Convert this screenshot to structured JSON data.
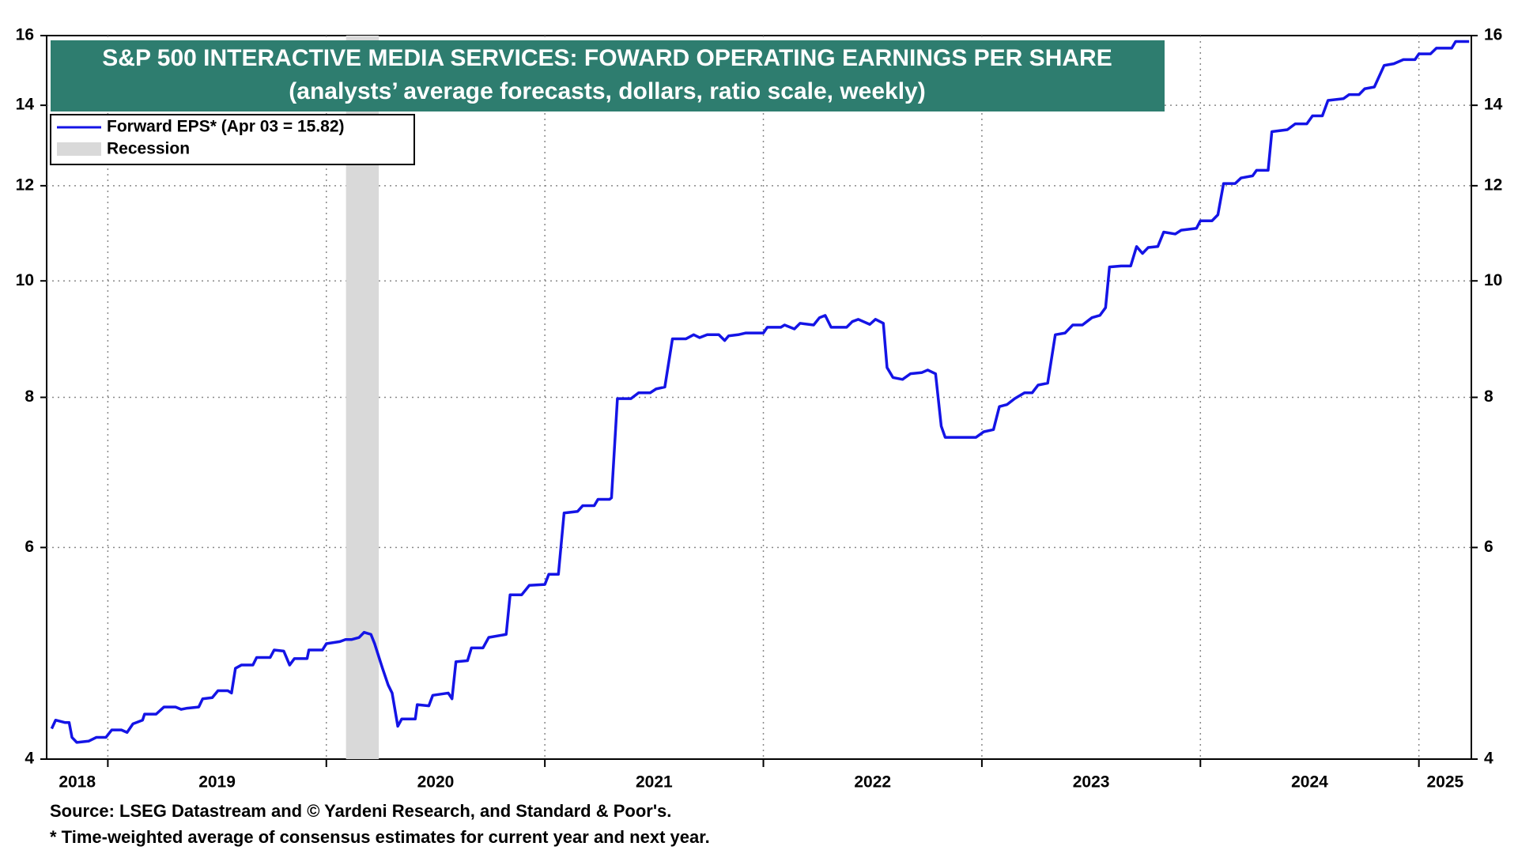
{
  "chart_data": {
    "type": "line",
    "title": "S&P 500 INTERACTIVE MEDIA SERVICES: FOWARD OPERATING EARNINGS PER SHARE",
    "subtitle": "(analysts’ average forecasts, dollars, ratio scale, weekly)",
    "source": "Source: LSEG Datastream and © Yardeni Research, and Standard & Poor's.",
    "footnote": "* Time-weighted average of consensus estimates for current year and next year.",
    "log_scale": true,
    "grid": true,
    "ylim": [
      4,
      16
    ],
    "yticks": [
      4,
      6,
      8,
      10,
      12,
      14,
      16
    ],
    "xlim": [
      2018.72,
      2025.24
    ],
    "xticks": [
      2019,
      2020,
      2021,
      2022,
      2023,
      2024,
      2025
    ],
    "year_labels": [
      "2018",
      "2019",
      "2020",
      "2021",
      "2022",
      "2023",
      "2024",
      "2025"
    ],
    "recession": [
      2020.09,
      2020.24
    ],
    "recession_name": "Recession",
    "recession_color": "#d9d9d9",
    "legend": "upper left",
    "x": [
      2018.743,
      2018.761,
      2018.805,
      2018.823,
      2018.836,
      2018.858,
      2018.912,
      2018.947,
      2018.991,
      2019.018,
      2019.062,
      2019.088,
      2019.115,
      2019.159,
      2019.168,
      2019.221,
      2019.257,
      2019.31,
      2019.336,
      2019.363,
      2019.416,
      2019.434,
      2019.478,
      2019.504,
      2019.549,
      2019.566,
      2019.584,
      2019.611,
      2019.664,
      2019.681,
      2019.743,
      2019.761,
      2019.805,
      2019.832,
      2019.854,
      2019.912,
      2019.92,
      2019.982,
      2020.0,
      2020.062,
      2020.088,
      2020.115,
      2020.15,
      2020.173,
      2020.204,
      2020.221,
      2020.257,
      2020.283,
      2020.301,
      2020.327,
      2020.345,
      2020.407,
      2020.416,
      2020.469,
      2020.487,
      2020.558,
      2020.575,
      2020.593,
      2020.646,
      2020.664,
      2020.717,
      2020.743,
      2020.823,
      2020.841,
      2020.894,
      2020.929,
      2021.0,
      2021.018,
      2021.062,
      2021.088,
      2021.15,
      2021.173,
      2021.226,
      2021.243,
      2021.296,
      2021.305,
      2021.332,
      2021.394,
      2021.429,
      2021.482,
      2021.509,
      2021.549,
      2021.584,
      2021.646,
      2021.681,
      2021.708,
      2021.743,
      2021.796,
      2021.823,
      2021.841,
      2021.885,
      2021.92,
      2022.0,
      2022.018,
      2022.08,
      2022.097,
      2022.142,
      2022.168,
      2022.23,
      2022.257,
      2022.283,
      2022.31,
      2022.381,
      2022.407,
      2022.434,
      2022.487,
      2022.513,
      2022.549,
      2022.566,
      2022.593,
      2022.637,
      2022.673,
      2022.726,
      2022.752,
      2022.788,
      2022.814,
      2022.832,
      2022.894,
      2022.973,
      2023.009,
      2023.053,
      2023.08,
      2023.115,
      2023.15,
      2023.195,
      2023.23,
      2023.257,
      2023.301,
      2023.336,
      2023.381,
      2023.416,
      2023.46,
      2023.504,
      2023.54,
      2023.566,
      2023.584,
      2023.637,
      2023.681,
      2023.708,
      2023.735,
      2023.761,
      2023.805,
      2023.832,
      2023.885,
      2023.912,
      2023.982,
      2024.0,
      2024.053,
      2024.08,
      2024.106,
      2024.159,
      2024.186,
      2024.239,
      2024.257,
      2024.31,
      2024.327,
      2024.398,
      2024.434,
      2024.487,
      2024.513,
      2024.558,
      2024.584,
      2024.655,
      2024.681,
      2024.726,
      2024.752,
      2024.796,
      2024.841,
      2024.885,
      2024.929,
      2024.982,
      2025.0,
      2025.053,
      2025.08,
      2025.15,
      2025.168,
      2025.23
    ],
    "series": [
      {
        "name": "Forward EPS* (Apr 03 = 15.82)",
        "color": "#1414e6",
        "values": [
          4.24,
          4.31,
          4.29,
          4.29,
          4.17,
          4.13,
          4.14,
          4.17,
          4.17,
          4.23,
          4.23,
          4.21,
          4.28,
          4.31,
          4.36,
          4.36,
          4.42,
          4.42,
          4.4,
          4.41,
          4.42,
          4.49,
          4.5,
          4.56,
          4.56,
          4.54,
          4.76,
          4.79,
          4.79,
          4.86,
          4.86,
          4.93,
          4.92,
          4.79,
          4.85,
          4.85,
          4.93,
          4.93,
          4.99,
          5.01,
          5.03,
          5.03,
          5.05,
          5.1,
          5.08,
          4.99,
          4.76,
          4.61,
          4.54,
          4.26,
          4.32,
          4.32,
          4.44,
          4.43,
          4.52,
          4.54,
          4.49,
          4.82,
          4.83,
          4.95,
          4.95,
          5.05,
          5.08,
          5.48,
          5.48,
          5.58,
          5.59,
          5.7,
          5.7,
          6.41,
          6.43,
          6.5,
          6.5,
          6.58,
          6.58,
          6.6,
          7.98,
          7.98,
          8.07,
          8.07,
          8.13,
          8.16,
          8.95,
          8.95,
          9.02,
          8.97,
          9.02,
          9.02,
          8.92,
          9.0,
          9.02,
          9.05,
          9.05,
          9.15,
          9.15,
          9.19,
          9.12,
          9.22,
          9.19,
          9.32,
          9.36,
          9.15,
          9.15,
          9.25,
          9.29,
          9.2,
          9.29,
          9.22,
          8.47,
          8.31,
          8.28,
          8.37,
          8.39,
          8.43,
          8.37,
          7.57,
          7.41,
          7.41,
          7.41,
          7.49,
          7.52,
          7.86,
          7.89,
          7.98,
          8.07,
          8.07,
          8.19,
          8.22,
          9.02,
          9.05,
          9.19,
          9.19,
          9.32,
          9.36,
          9.5,
          10.27,
          10.29,
          10.29,
          10.68,
          10.54,
          10.66,
          10.68,
          10.98,
          10.94,
          11.02,
          11.06,
          11.22,
          11.22,
          11.35,
          12.05,
          12.05,
          12.18,
          12.23,
          12.36,
          12.36,
          13.31,
          13.36,
          13.51,
          13.51,
          13.72,
          13.72,
          14.13,
          14.18,
          14.29,
          14.29,
          14.45,
          14.5,
          15.11,
          15.16,
          15.28,
          15.28,
          15.45,
          15.45,
          15.62,
          15.62,
          15.82,
          15.82
        ]
      }
    ]
  }
}
